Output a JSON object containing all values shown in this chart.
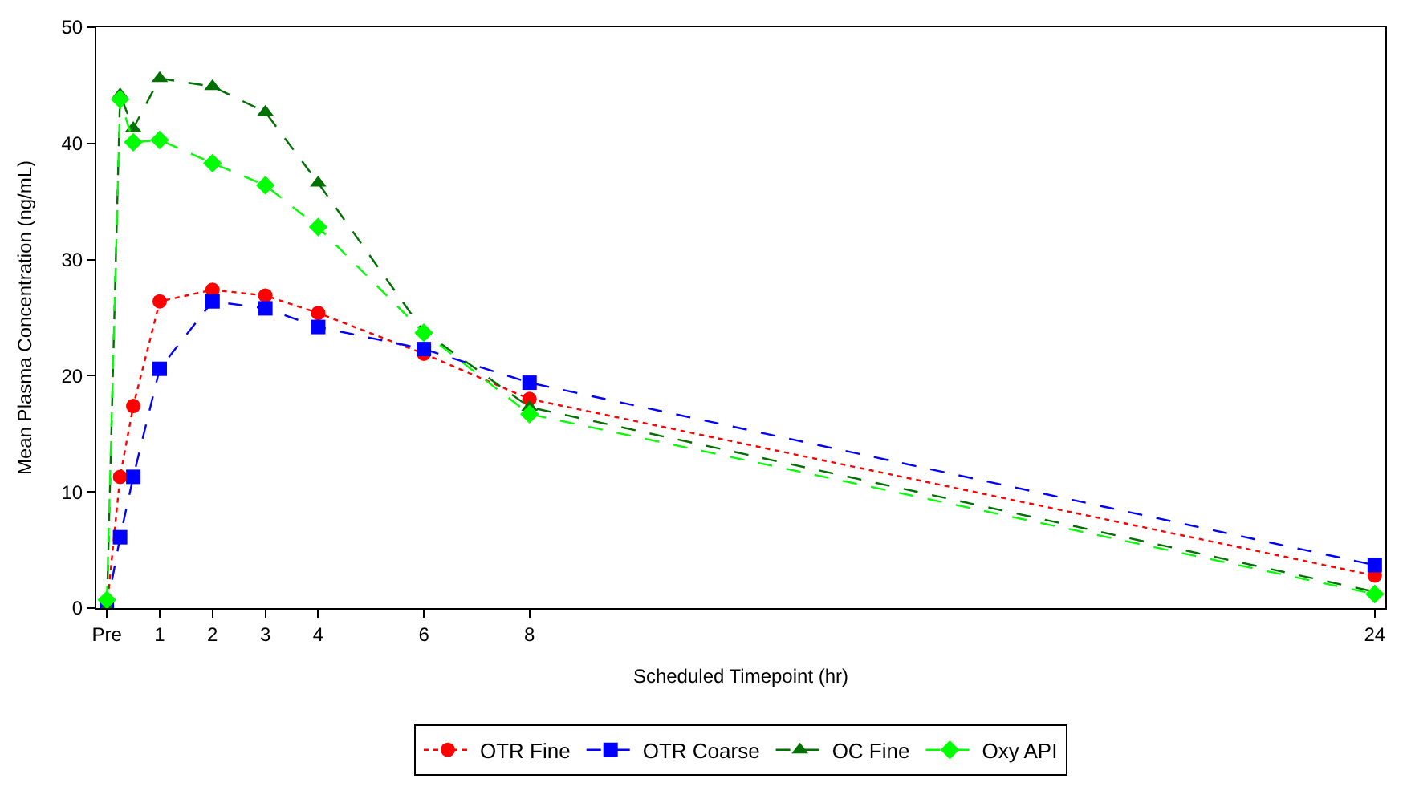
{
  "chart_data": {
    "type": "line",
    "xlabel": "Scheduled Timepoint (hr)",
    "ylabel": "Mean Plasma Concentration (ng/mL)",
    "x": [
      0,
      0.25,
      0.5,
      1,
      2,
      3,
      4,
      6,
      8,
      24
    ],
    "xlim": [
      -0.2,
      24.2
    ],
    "xticks": [
      {
        "value": 0,
        "label": "Pre"
      },
      1,
      2,
      3,
      4,
      6,
      8,
      24
    ],
    "ylim": [
      0,
      50
    ],
    "yticks": [
      0,
      10,
      20,
      30,
      40,
      50
    ],
    "legend": "bottom",
    "series": [
      {
        "name": "OTR Fine",
        "color": "#ff0000",
        "marker": "circle",
        "line_style": "dotted",
        "values": [
          0,
          11.3,
          17.4,
          26.4,
          27.4,
          26.9,
          25.4,
          21.9,
          18.0,
          2.8
        ]
      },
      {
        "name": "OTR Coarse",
        "color": "#0000ff",
        "marker": "square",
        "line_style": "dashed",
        "values": [
          0,
          6.1,
          11.3,
          20.6,
          26.4,
          25.8,
          24.2,
          22.3,
          19.4,
          3.7
        ]
      },
      {
        "name": "OC Fine",
        "color": "#007000",
        "marker": "triangle",
        "line_style": "dashed",
        "values": [
          0,
          44.2,
          41.3,
          45.6,
          44.9,
          42.7,
          36.6,
          23.8,
          17.3,
          1.4
        ]
      },
      {
        "name": "Oxy API",
        "color": "#00ff00",
        "marker": "diamond",
        "line_style": "dashed",
        "values": [
          0.7,
          43.8,
          40.1,
          40.3,
          38.3,
          36.4,
          32.8,
          23.7,
          16.7,
          1.2
        ]
      }
    ]
  }
}
